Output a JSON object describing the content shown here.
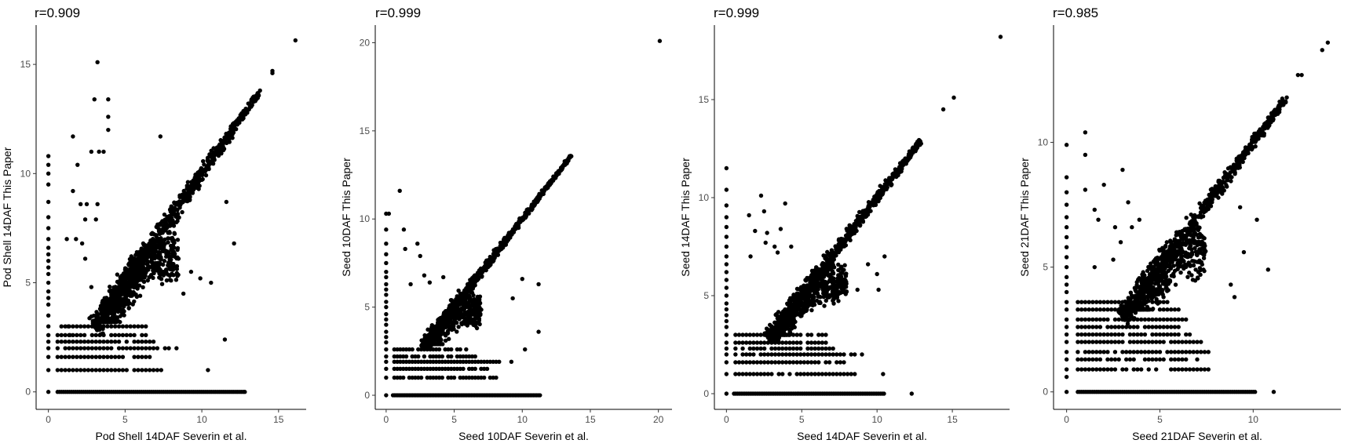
{
  "chart_data": [
    {
      "type": "scatter",
      "title": "r=0.909",
      "xlabel": "Pod Shell 14DAF Severin et al.",
      "ylabel": "Pod Shell 14DAF This Paper",
      "xlim": [
        -0.8,
        16.8
      ],
      "ylim": [
        -0.8,
        16.8
      ],
      "xticks": [
        0,
        5,
        10,
        15
      ],
      "yticks": [
        0,
        5,
        10,
        15
      ],
      "r": 0.909,
      "outliers": [
        [
          16.1,
          16.1
        ],
        [
          3.2,
          15.1
        ],
        [
          14.6,
          14.6
        ],
        [
          14.6,
          14.7
        ],
        [
          3.9,
          13.4
        ],
        [
          3.0,
          13.4
        ],
        [
          3.9,
          12.6
        ],
        [
          3.9,
          12.0
        ],
        [
          1.6,
          11.7
        ],
        [
          7.3,
          11.7
        ],
        [
          2.8,
          11.0
        ],
        [
          3.3,
          11.0
        ],
        [
          1.9,
          10.4
        ],
        [
          3.6,
          11.0
        ],
        [
          1.6,
          9.2
        ],
        [
          2.1,
          8.6
        ],
        [
          2.5,
          8.6
        ],
        [
          3.2,
          8.6
        ],
        [
          2.4,
          7.9
        ],
        [
          3.1,
          7.9
        ],
        [
          1.2,
          7.0
        ],
        [
          1.8,
          7.0
        ],
        [
          2.2,
          6.8
        ],
        [
          2.4,
          6.1
        ],
        [
          11.6,
          8.7
        ],
        [
          12.1,
          6.8
        ],
        [
          9.3,
          5.5
        ],
        [
          9.9,
          5.2
        ],
        [
          10.6,
          5.0
        ],
        [
          8.8,
          4.5
        ],
        [
          11.5,
          2.4
        ],
        [
          10.4,
          1.0
        ],
        [
          12.8,
          0.0
        ],
        [
          1.3,
          3.0
        ],
        [
          1.4,
          2.6
        ],
        [
          2.8,
          4.8
        ]
      ],
      "diagonal": {
        "start": 3.0,
        "end": 13.8,
        "count": 750,
        "spread_base": 1.0,
        "spread_slope": -0.06
      },
      "dense_cloud": {
        "x": [
          3.5,
          8.5
        ],
        "y": [
          3.2,
          6.5
        ],
        "count": 500
      },
      "low_bands": {
        "levels": [
          0,
          1,
          1.6,
          2,
          2.3,
          2.6,
          3
        ],
        "x_end": [
          10.5,
          7.5,
          7.0,
          8.5,
          7.0,
          6.5,
          6.5
        ],
        "step": 0.25
      },
      "zero_row": {
        "x_start": 0.6,
        "x_end": 12.8,
        "step": 0.13
      },
      "zero_column": {
        "y": [
          0,
          1,
          1.6,
          2,
          2.3,
          2.6,
          3,
          3.5,
          4,
          4.3,
          4.6,
          5,
          5.4,
          5.7,
          6,
          6.3,
          6.6,
          7,
          7.5,
          8,
          8.7,
          9.5,
          10,
          10.4,
          10.8
        ]
      }
    },
    {
      "type": "scatter",
      "title": "r=0.999",
      "xlabel": "Seed 10DAF Severin et al.",
      "ylabel": "Seed 10DAF This Paper",
      "xlim": [
        -0.8,
        21.0
      ],
      "ylim": [
        -0.8,
        21.0
      ],
      "xticks": [
        0,
        5,
        10,
        15,
        20
      ],
      "yticks": [
        0,
        5,
        10,
        15,
        20
      ],
      "r": 0.999,
      "outliers": [
        [
          20.1,
          20.1
        ],
        [
          1.0,
          11.6
        ],
        [
          0.2,
          10.3
        ],
        [
          1.3,
          9.4
        ],
        [
          2.3,
          8.6
        ],
        [
          1.4,
          8.3
        ],
        [
          2.5,
          7.9
        ],
        [
          1.8,
          6.3
        ],
        [
          2.8,
          6.8
        ],
        [
          3.2,
          6.4
        ],
        [
          4.2,
          6.7
        ],
        [
          10.0,
          6.6
        ],
        [
          11.2,
          6.3
        ],
        [
          9.3,
          5.5
        ],
        [
          11.2,
          3.6
        ],
        [
          10.2,
          2.6
        ],
        [
          9.2,
          1.9
        ]
      ],
      "diagonal": {
        "start": 2.7,
        "end": 13.6,
        "count": 650,
        "spread_base": 0.55,
        "spread_slope": -0.035
      },
      "dense_cloud": {
        "x": [
          3.0,
          7.0
        ],
        "y": [
          2.9,
          5.2
        ],
        "count": 350
      },
      "low_bands": {
        "levels": [
          0,
          1,
          1.5,
          1.9,
          2.2,
          2.6
        ],
        "x_end": [
          11.3,
          8.2,
          7.6,
          8.4,
          6.6,
          6.2
        ],
        "step": 0.22
      },
      "zero_row": {
        "x_start": 0.5,
        "x_end": 11.3,
        "step": 0.12
      },
      "zero_column": {
        "y": [
          0,
          1,
          1.5,
          1.9,
          2.2,
          2.6,
          3,
          3.3,
          3.6,
          4,
          4.3,
          4.6,
          5,
          5.3,
          5.7,
          6,
          6.3,
          6.7,
          7,
          7.5,
          8,
          8.6,
          9.4,
          10.3
        ]
      }
    },
    {
      "type": "scatter",
      "title": "r=0.999",
      "xlabel": "Seed 14DAF Severin et al.",
      "ylabel": "Seed 14DAF This Paper",
      "xlim": [
        -0.8,
        18.8
      ],
      "ylim": [
        -0.8,
        18.8
      ],
      "xticks": [
        0,
        5,
        10,
        15
      ],
      "yticks": [
        0,
        5,
        10,
        15
      ],
      "r": 0.999,
      "outliers": [
        [
          18.2,
          18.2
        ],
        [
          15.1,
          15.1
        ],
        [
          14.4,
          14.5
        ],
        [
          2.3,
          10.1
        ],
        [
          3.9,
          9.7
        ],
        [
          1.5,
          9.1
        ],
        [
          2.5,
          9.3
        ],
        [
          1.9,
          8.3
        ],
        [
          2.7,
          8.2
        ],
        [
          3.6,
          8.4
        ],
        [
          2.6,
          7.7
        ],
        [
          3.2,
          7.5
        ],
        [
          3.4,
          7.2
        ],
        [
          4.3,
          7.5
        ],
        [
          1.6,
          7.0
        ],
        [
          10.5,
          7.0
        ],
        [
          9.4,
          6.6
        ],
        [
          10.0,
          6.1
        ],
        [
          8.7,
          5.3
        ],
        [
          10.1,
          5.3
        ],
        [
          10.4,
          1.0
        ],
        [
          12.3,
          0.0
        ]
      ],
      "diagonal": {
        "start": 2.8,
        "end": 12.9,
        "count": 700,
        "spread_base": 0.75,
        "spread_slope": -0.045
      },
      "dense_cloud": {
        "x": [
          3.2,
          8.0
        ],
        "y": [
          3.0,
          6.0
        ],
        "count": 450
      },
      "low_bands": {
        "levels": [
          0,
          1,
          1.6,
          2,
          2.3,
          2.6,
          3
        ],
        "x_end": [
          10.5,
          8.7,
          8.0,
          9.0,
          7.2,
          6.8,
          6.6
        ],
        "step": 0.24
      },
      "zero_row": {
        "x_start": 0.5,
        "x_end": 10.5,
        "step": 0.12
      },
      "zero_column": {
        "y": [
          0,
          1,
          1.6,
          2,
          2.3,
          2.6,
          3,
          3.4,
          3.7,
          4,
          4.3,
          4.6,
          5,
          5.4,
          5.8,
          6.2,
          6.6,
          7,
          7.5,
          8,
          8.5,
          9,
          9.6,
          10.4,
          11.5
        ]
      }
    },
    {
      "type": "scatter",
      "title": "r=0.985",
      "xlabel": "Seed 21DAF Severin et al.",
      "ylabel": "Seed 21DAF This Paper",
      "xlim": [
        -0.7,
        14.7
      ],
      "ylim": [
        -0.7,
        14.7
      ],
      "xticks": [
        0,
        5,
        10
      ],
      "yticks": [
        0,
        5,
        10
      ],
      "r": 0.985,
      "outliers": [
        [
          14.0,
          14.0
        ],
        [
          13.7,
          13.7
        ],
        [
          12.6,
          12.7
        ],
        [
          12.4,
          12.7
        ],
        [
          11.8,
          11.8
        ],
        [
          1.0,
          10.4
        ],
        [
          1.0,
          9.5
        ],
        [
          3.0,
          8.9
        ],
        [
          2.0,
          8.3
        ],
        [
          1.0,
          8.1
        ],
        [
          1.5,
          7.3
        ],
        [
          3.3,
          7.6
        ],
        [
          3.9,
          6.9
        ],
        [
          1.7,
          6.9
        ],
        [
          2.6,
          6.6
        ],
        [
          3.5,
          6.6
        ],
        [
          2.9,
          6.0
        ],
        [
          1.5,
          5.0
        ],
        [
          2.5,
          5.3
        ],
        [
          9.3,
          7.4
        ],
        [
          10.2,
          6.9
        ],
        [
          9.5,
          5.6
        ],
        [
          10.8,
          4.9
        ],
        [
          8.8,
          4.3
        ],
        [
          9.0,
          3.8
        ],
        [
          11.1,
          0.0
        ]
      ],
      "diagonal": {
        "start": 3.0,
        "end": 11.7,
        "count": 650,
        "spread_base": 0.7,
        "spread_slope": -0.045
      },
      "dense_cloud": {
        "x": [
          3.3,
          7.5
        ],
        "y": [
          3.3,
          6.0
        ],
        "count": 450
      },
      "low_bands": {
        "levels": [
          0,
          0.9,
          1.3,
          1.6,
          2,
          2.3,
          2.6,
          2.9,
          3.3,
          3.6
        ],
        "x_end": [
          10.0,
          7.6,
          7.0,
          7.9,
          7.2,
          6.6,
          6.0,
          6.4,
          6.0,
          5.6
        ],
        "step": 0.2
      },
      "zero_row": {
        "x_start": 0.6,
        "x_end": 10.1,
        "step": 0.1
      },
      "zero_column": {
        "y": [
          0,
          0.6,
          0.9,
          1.3,
          1.6,
          2,
          2.3,
          2.6,
          2.9,
          3.3,
          3.6,
          4,
          4.3,
          4.6,
          5,
          5.4,
          5.8,
          6.2,
          6.6,
          7,
          7.5,
          8,
          8.6,
          9.9
        ]
      }
    }
  ]
}
